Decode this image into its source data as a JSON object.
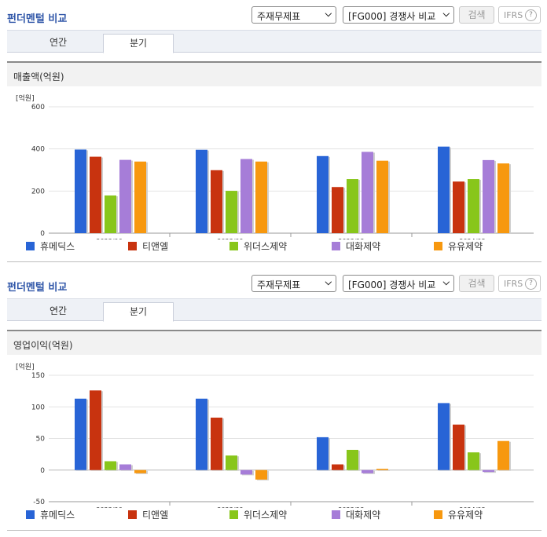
{
  "legend_colors": [
    "#2864d6",
    "#c8330f",
    "#88c61b",
    "#a67dd8",
    "#f7980f"
  ],
  "panels": [
    {
      "title": "펀더멘털 비교",
      "select1": "주재무제표",
      "select2": "[FG000] 경쟁사 비교",
      "search_label": "검색",
      "ifrs_label": "IFRS",
      "help_icon": "?",
      "tabs": [
        "연간",
        "분기"
      ],
      "active_tab": 1,
      "section_title": "매출액(억원)",
      "unit_label": "[억원]"
    },
    {
      "title": "펀더멘털 비교",
      "select1": "주재무제표",
      "select2": "[FG000] 경쟁사 비교",
      "search_label": "검색",
      "ifrs_label": "IFRS",
      "help_icon": "?",
      "tabs": [
        "연간",
        "분기"
      ],
      "active_tab": 1,
      "section_title": "영업이익(억원)",
      "unit_label": "[억원]"
    }
  ],
  "chart_data": [
    {
      "type": "bar",
      "title": "매출액(억원)",
      "unit": "[억원]",
      "categories": [
        "2023/06",
        "2023/09",
        "2023/12",
        "2024/03"
      ],
      "ylim": [
        0,
        600
      ],
      "yticks": [
        0,
        200,
        400,
        600
      ],
      "grid": true,
      "legend_position": "bottom",
      "series": [
        {
          "name": "휴메딕스",
          "color": "#2864d6",
          "values": [
            397,
            396,
            366,
            411
          ]
        },
        {
          "name": "티앤엘",
          "color": "#c8330f",
          "values": [
            363,
            299,
            219,
            245
          ]
        },
        {
          "name": "위더스제약",
          "color": "#88c61b",
          "values": [
            179,
            201,
            257,
            257
          ]
        },
        {
          "name": "대화제약",
          "color": "#a67dd8",
          "values": [
            348,
            352,
            386,
            347
          ]
        },
        {
          "name": "유유제약",
          "color": "#f7980f",
          "values": [
            340,
            340,
            344,
            331
          ]
        }
      ]
    },
    {
      "type": "bar",
      "title": "영업이익(억원)",
      "unit": "[억원]",
      "categories": [
        "2023/06",
        "2023/09",
        "2023/12",
        "2024/03"
      ],
      "ylim": [
        -50,
        150
      ],
      "yticks": [
        -50,
        0,
        50,
        100,
        150
      ],
      "grid": true,
      "legend_position": "bottom",
      "series": [
        {
          "name": "휴메딕스",
          "color": "#2864d6",
          "values": [
            113,
            113,
            52,
            106
          ]
        },
        {
          "name": "티앤엘",
          "color": "#c8330f",
          "values": [
            126,
            83,
            9,
            72
          ]
        },
        {
          "name": "위더스제약",
          "color": "#88c61b",
          "values": [
            14,
            23,
            32,
            28
          ]
        },
        {
          "name": "대화제약",
          "color": "#a67dd8",
          "values": [
            9,
            -7,
            -5,
            -3
          ]
        },
        {
          "name": "유유제약",
          "color": "#f7980f",
          "values": [
            -5,
            -15,
            2,
            46
          ]
        }
      ]
    }
  ]
}
